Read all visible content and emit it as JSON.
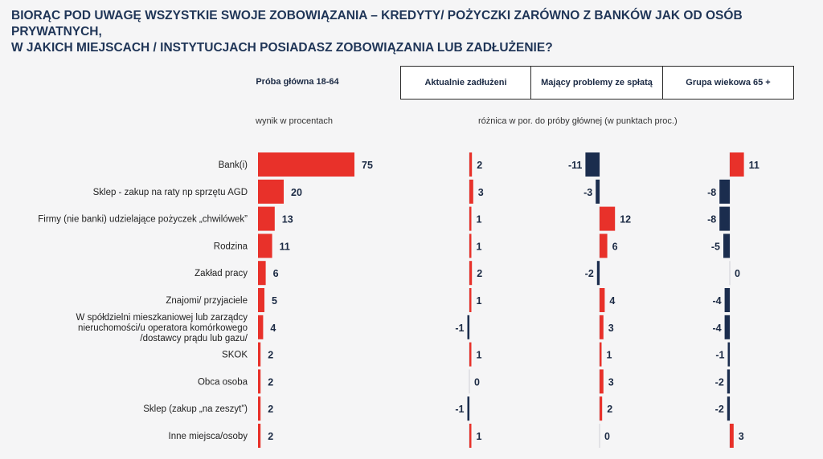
{
  "title_line1": "BIORĄC POD UWAGĘ WSZYSTKIE SWOJE ZOBOWIĄZANIA – KREDYTY/ POŻYCZKI ZARÓWNO Z BANKÓW JAK OD OSÓB PRYWATNYCH,",
  "title_line2": "W JAKICH MIEJSCACH / INSTYTUCJACH POSIADASZ ZOBOWIĄZANIA LUB ZADŁUŻENIE?",
  "headers": {
    "main": "Próba główna 18-64",
    "groups": [
      "Aktualnie zadłużeni",
      "Mający problemy ze spłatą",
      "Grupa wiekowa 65 +"
    ]
  },
  "subtitles": {
    "main": "wynik w procentach",
    "diff": "różnica w por. do próby głównej (w punktach proc.)"
  },
  "colors": {
    "positive": "#e8312a",
    "negative": "#1b2d4e",
    "zero_line": "#d0d0d6"
  },
  "chart_data": {
    "type": "bar",
    "categories": [
      [
        "Bank(i)"
      ],
      [
        "Sklep - zakup na raty np sprzętu AGD"
      ],
      [
        "Firmy (nie banki) udzielające pożyczek „chwilówek”"
      ],
      [
        "Rodzina"
      ],
      [
        "Zakład pracy"
      ],
      [
        "Znajomi/ przyjaciele"
      ],
      [
        "W spółdzielni mieszkaniowej lub zarządcy",
        "nieruchomości/u operatora komórkowego",
        "/dostawcy prądu lub gazu/"
      ],
      [
        "SKOK"
      ],
      [
        "Obca osoba"
      ],
      [
        "Sklep (zakup „na zeszyt”)"
      ],
      [
        "Inne miejsca/osoby"
      ]
    ],
    "series": [
      {
        "name": "Próba główna 18-64",
        "values": [
          75,
          20,
          13,
          11,
          6,
          5,
          4,
          2,
          2,
          2,
          2
        ]
      },
      {
        "name": "Aktualnie zadłużeni",
        "values": [
          2,
          3,
          1,
          1,
          2,
          1,
          -1,
          1,
          0,
          -1,
          1
        ]
      },
      {
        "name": "Mający problemy ze spłatą",
        "values": [
          -11,
          -3,
          12,
          6,
          -2,
          4,
          3,
          1,
          3,
          2,
          0
        ]
      },
      {
        "name": "Grupa wiekowa 65 +",
        "values": [
          11,
          -8,
          -8,
          -5,
          0,
          -4,
          -4,
          -1,
          -2,
          -2,
          3
        ]
      }
    ]
  }
}
